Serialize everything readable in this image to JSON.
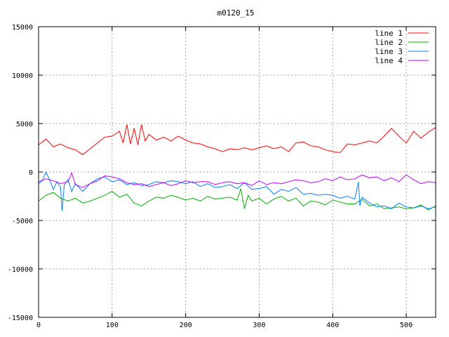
{
  "chart_data": {
    "type": "line",
    "title": "m0120_15",
    "xlabel": "",
    "ylabel": "",
    "xlim": [
      0,
      540
    ],
    "ylim": [
      -15000,
      15000
    ],
    "x_ticks": [
      0,
      100,
      200,
      300,
      400,
      500
    ],
    "y_ticks": [
      -15000,
      -10000,
      -5000,
      0,
      5000,
      10000,
      15000
    ],
    "grid": true,
    "legend_position": "top-right",
    "series": [
      {
        "name": "line 1",
        "color": "#ff0000",
        "x": [
          0,
          10,
          20,
          30,
          40,
          50,
          60,
          70,
          80,
          90,
          100,
          110,
          115,
          120,
          125,
          130,
          135,
          140,
          145,
          150,
          160,
          170,
          180,
          190,
          200,
          210,
          220,
          230,
          240,
          250,
          260,
          270,
          280,
          290,
          300,
          310,
          320,
          330,
          340,
          350,
          360,
          370,
          380,
          390,
          400,
          410,
          420,
          430,
          440,
          450,
          460,
          470,
          480,
          490,
          500,
          510,
          520,
          530,
          540
        ],
        "values": [
          2800,
          3400,
          2600,
          2900,
          2500,
          2300,
          1800,
          2400,
          3000,
          3600,
          3700,
          4200,
          3000,
          4900,
          2900,
          4500,
          2800,
          4900,
          3200,
          3900,
          3300,
          3600,
          3200,
          3700,
          3300,
          3000,
          2900,
          2600,
          2400,
          2100,
          2400,
          2300,
          2500,
          2300,
          2500,
          2700,
          2400,
          2600,
          2100,
          3000,
          3100,
          2700,
          2600,
          2300,
          2100,
          2000,
          2900,
          2800,
          3000,
          3200,
          3000,
          3700,
          4500,
          3700,
          3000,
          4200,
          3500,
          4100,
          4600
        ]
      },
      {
        "name": "line 2",
        "color": "#00b000",
        "x": [
          0,
          10,
          20,
          30,
          40,
          50,
          60,
          70,
          80,
          90,
          100,
          110,
          120,
          130,
          140,
          150,
          160,
          170,
          180,
          190,
          200,
          210,
          220,
          230,
          240,
          250,
          260,
          270,
          275,
          280,
          285,
          290,
          300,
          310,
          320,
          330,
          340,
          350,
          360,
          370,
          380,
          390,
          400,
          410,
          420,
          430,
          440,
          450,
          460,
          470,
          480,
          490,
          500,
          510,
          520,
          530,
          540
        ],
        "values": [
          -3000,
          -2400,
          -2100,
          -2700,
          -3000,
          -2700,
          -3200,
          -3000,
          -2700,
          -2400,
          -2000,
          -2600,
          -2300,
          -3200,
          -3500,
          -3000,
          -2600,
          -2700,
          -2400,
          -2600,
          -2900,
          -2700,
          -3000,
          -2500,
          -2800,
          -2700,
          -2600,
          -2900,
          -1700,
          -3800,
          -2400,
          -3000,
          -2700,
          -3300,
          -2800,
          -2500,
          -3000,
          -2700,
          -3500,
          -3000,
          -3100,
          -3400,
          -2900,
          -3100,
          -3300,
          -3300,
          -2800,
          -3500,
          -3300,
          -3800,
          -3700,
          -3600,
          -3800,
          -3700,
          -3400,
          -3900,
          -3500
        ]
      },
      {
        "name": "line 3",
        "color": "#0080ff",
        "x": [
          0,
          5,
          10,
          15,
          20,
          25,
          30,
          32,
          35,
          40,
          45,
          50,
          60,
          70,
          80,
          90,
          100,
          110,
          120,
          130,
          140,
          150,
          160,
          170,
          180,
          190,
          200,
          210,
          220,
          230,
          240,
          250,
          260,
          270,
          280,
          290,
          300,
          310,
          320,
          330,
          340,
          350,
          360,
          370,
          380,
          390,
          400,
          410,
          420,
          430,
          435,
          437,
          440,
          450,
          460,
          470,
          480,
          490,
          500,
          510,
          520,
          530,
          540
        ],
        "values": [
          -1200,
          -900,
          0,
          -800,
          -1800,
          -1000,
          -1600,
          -4000,
          -1300,
          -800,
          -2000,
          -1200,
          -2000,
          -1200,
          -700,
          -500,
          -1000,
          -800,
          -1300,
          -1100,
          -1400,
          -1300,
          -1000,
          -1100,
          -900,
          -1000,
          -1200,
          -1000,
          -1500,
          -1200,
          -1600,
          -1500,
          -1300,
          -1700,
          -1100,
          -1800,
          -1700,
          -1500,
          -2300,
          -1800,
          -2000,
          -1600,
          -2300,
          -2200,
          -2400,
          -2300,
          -2400,
          -2700,
          -2500,
          -2800,
          -1000,
          -3500,
          -2600,
          -3200,
          -3600,
          -3500,
          -3800,
          -3200,
          -3600,
          -3700,
          -3500,
          -3800,
          -3600
        ]
      },
      {
        "name": "line 4",
        "color": "#c000ff",
        "x": [
          0,
          10,
          20,
          30,
          40,
          45,
          50,
          60,
          70,
          80,
          90,
          100,
          110,
          120,
          130,
          140,
          150,
          160,
          170,
          180,
          190,
          200,
          210,
          220,
          230,
          240,
          250,
          260,
          270,
          280,
          290,
          300,
          310,
          320,
          330,
          340,
          350,
          360,
          370,
          380,
          390,
          400,
          410,
          420,
          430,
          440,
          450,
          460,
          470,
          480,
          490,
          500,
          510,
          520,
          530,
          540
        ],
        "values": [
          -1000,
          -700,
          -900,
          -1200,
          -1000,
          -100,
          -1300,
          -1600,
          -1200,
          -900,
          -400,
          -500,
          -700,
          -1100,
          -1300,
          -1200,
          -1500,
          -1300,
          -1100,
          -1400,
          -1200,
          -900,
          -1100,
          -1000,
          -1000,
          -1300,
          -1100,
          -1000,
          -1200,
          -1100,
          -1400,
          -900,
          -1300,
          -1100,
          -1200,
          -1000,
          -800,
          -900,
          -1100,
          -1000,
          -700,
          -900,
          -500,
          -800,
          -700,
          -300,
          -600,
          -500,
          -900,
          -600,
          -1000,
          -300,
          -800,
          -1200,
          -1000,
          -1100
        ]
      }
    ]
  }
}
